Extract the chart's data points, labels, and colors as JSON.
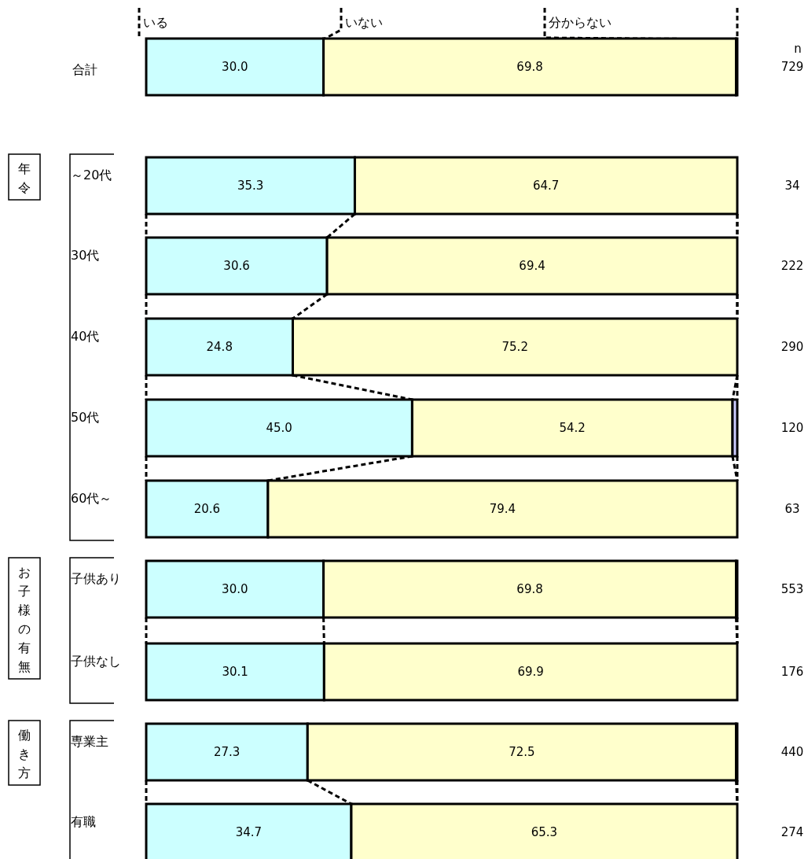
{
  "chart_data": {
    "type": "bar",
    "orientation": "horizontal",
    "stacked": true,
    "legend": "top",
    "categories": [
      "合計",
      "～20代",
      "30代",
      "40代",
      "50代",
      "60代～",
      "子供あり",
      "子供なし",
      "専業主",
      "有職"
    ],
    "series": [
      {
        "name": "いる",
        "color": "#ccffff",
        "values": [
          30.0,
          35.3,
          30.6,
          24.8,
          45.0,
          20.6,
          30.0,
          30.1,
          27.3,
          34.7
        ],
        "value_labels": [
          "30.0",
          "35.3",
          "30.6",
          "24.8",
          "45.0",
          "20.6",
          "30.0",
          "30.1",
          "27.3",
          "34.7"
        ]
      },
      {
        "name": "いない",
        "color": "#ffffcc",
        "values": [
          69.8,
          64.7,
          69.4,
          75.2,
          54.2,
          79.4,
          69.8,
          69.9,
          72.5,
          65.3
        ],
        "value_labels": [
          "69.8",
          "64.7",
          "69.4",
          "75.2",
          "54.2",
          "79.4",
          "69.8",
          "69.9",
          "72.5",
          "65.3"
        ]
      },
      {
        "name": "分からない",
        "color": "#ccccff",
        "values": [
          0.2,
          0,
          0,
          0,
          0.8,
          0,
          0.2,
          0,
          0.2,
          0
        ]
      }
    ],
    "annotations": [
      "n",
      "729",
      "34",
      "222",
      "290",
      "120",
      "63",
      "553",
      "176",
      "440",
      "274",
      "年令",
      "お子様の有無",
      "働き方"
    ]
  }
}
